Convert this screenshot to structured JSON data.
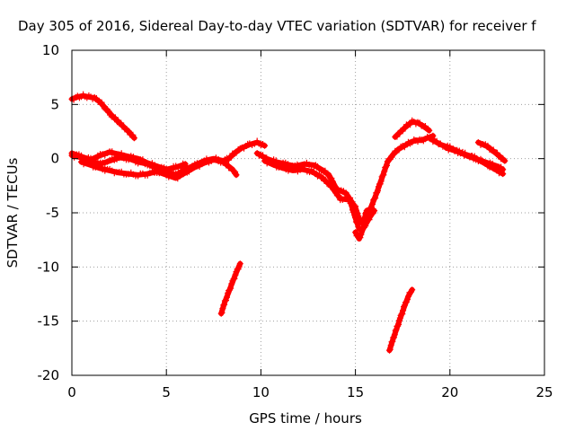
{
  "chart_data": {
    "type": "scatter",
    "title": "Day 305 of 2016, Sidereal Day-to-day VTEC variation (SDTVAR) for receiver f",
    "xlabel": "GPS time / hours",
    "ylabel": "SDTVAR / TECUs",
    "xlim": [
      0,
      25
    ],
    "ylim": [
      -20,
      10
    ],
    "xticks": [
      0,
      5,
      10,
      15,
      20,
      25
    ],
    "yticks": [
      -20,
      -15,
      -10,
      -5,
      0,
      5,
      10
    ],
    "grid": true,
    "marker": "plus",
    "series_color": "#ff0000",
    "series": [
      {
        "x": [
          0.0,
          0.3,
          0.6,
          0.9,
          1.2,
          1.5,
          1.8,
          2.1,
          2.4,
          2.7,
          3.0,
          3.3
        ],
        "y": [
          5.5,
          5.7,
          5.8,
          5.7,
          5.6,
          5.2,
          4.6,
          4.0,
          3.5,
          3.0,
          2.5,
          1.9
        ]
      },
      {
        "x": [
          0.0,
          0.5,
          1.0,
          1.5,
          2.0,
          2.5,
          3.0,
          3.5,
          4.0,
          4.5,
          5.0,
          5.5,
          6.0,
          6.5,
          7.0,
          7.5,
          8.0,
          8.3,
          8.6,
          9.0,
          9.4,
          9.8,
          10.2
        ],
        "y": [
          0.3,
          0.1,
          -0.2,
          -0.5,
          -0.2,
          0.1,
          0.0,
          -0.3,
          -0.5,
          -0.9,
          -1.2,
          -1.5,
          -1.0,
          -0.6,
          -0.2,
          0.0,
          -0.2,
          0.0,
          0.5,
          1.0,
          1.3,
          1.5,
          1.2
        ]
      },
      {
        "x": [
          0.0,
          0.5,
          1.0,
          1.5,
          2.0,
          2.5,
          3.0,
          3.5,
          4.0,
          4.5,
          5.0,
          5.5,
          6.0
        ],
        "y": [
          0.5,
          0.2,
          -0.1,
          0.3,
          0.6,
          0.4,
          0.2,
          0.0,
          -0.4,
          -0.7,
          -1.0,
          -0.8,
          -0.5
        ]
      },
      {
        "x": [
          0.5,
          1.0,
          1.5,
          2.0,
          2.5,
          3.0,
          3.5,
          4.0,
          4.5,
          5.0,
          5.5,
          6.0,
          6.5,
          7.0,
          7.5,
          8.0,
          8.5,
          8.7
        ],
        "y": [
          -0.3,
          -0.6,
          -0.9,
          -1.1,
          -1.3,
          -1.4,
          -1.5,
          -1.4,
          -1.2,
          -1.5,
          -1.8,
          -1.3,
          -0.8,
          -0.4,
          -0.1,
          -0.3,
          -1.0,
          -1.5
        ]
      },
      {
        "x": [
          7.9,
          8.1,
          8.3,
          8.5,
          8.7,
          8.9
        ],
        "y": [
          -14.3,
          -13.2,
          -12.3,
          -11.4,
          -10.5,
          -9.7
        ]
      },
      {
        "x": [
          9.8,
          10.3,
          10.8,
          11.3,
          11.8,
          12.3,
          12.8,
          13.2,
          13.6,
          14.0,
          14.5,
          15.0,
          15.2,
          15.4,
          15.6
        ],
        "y": [
          0.5,
          0.0,
          -0.3,
          -0.5,
          -0.7,
          -0.5,
          -0.6,
          -1.0,
          -1.5,
          -2.8,
          -3.2,
          -4.5,
          -5.6,
          -6.0,
          -4.8
        ]
      },
      {
        "x": [
          10.2,
          10.7,
          11.2,
          11.7,
          12.2,
          12.7,
          13.2,
          13.7,
          14.2,
          14.7,
          15.0,
          15.2
        ],
        "y": [
          -0.2,
          -0.6,
          -0.9,
          -1.1,
          -1.0,
          -1.2,
          -1.7,
          -2.5,
          -3.7,
          -3.8,
          -5.5,
          -6.5
        ]
      },
      {
        "x": [
          15.0,
          15.2,
          15.4,
          15.6,
          15.8,
          16.0
        ],
        "y": [
          -6.8,
          -7.4,
          -6.5,
          -5.9,
          -5.3,
          -4.8
        ]
      },
      {
        "x": [
          15.5,
          15.8,
          16.1,
          16.4,
          16.7,
          17.0,
          17.3,
          17.6,
          17.9,
          18.2,
          18.5,
          18.8,
          19.1
        ],
        "y": [
          -5.8,
          -4.6,
          -3.3,
          -1.8,
          -0.3,
          0.4,
          0.9,
          1.2,
          1.5,
          1.7,
          1.7,
          1.9,
          2.1
        ]
      },
      {
        "x": [
          16.8,
          17.0,
          17.2,
          17.4,
          17.6,
          17.8,
          18.0
        ],
        "y": [
          -17.7,
          -16.6,
          -15.6,
          -14.6,
          -13.6,
          -12.7,
          -12.1
        ]
      },
      {
        "x": [
          17.1,
          17.4,
          17.7,
          18.0,
          18.3,
          18.6,
          18.9
        ],
        "y": [
          2.0,
          2.5,
          3.0,
          3.4,
          3.3,
          3.0,
          2.6
        ]
      },
      {
        "x": [
          19.0,
          19.5,
          20.0,
          20.5,
          21.0,
          21.5,
          22.0,
          22.5,
          22.8
        ],
        "y": [
          1.8,
          1.3,
          1.0,
          0.6,
          0.2,
          -0.1,
          -0.4,
          -0.7,
          -1.0
        ]
      },
      {
        "x": [
          19.8,
          20.3,
          20.8,
          21.3,
          21.8,
          22.3,
          22.8
        ],
        "y": [
          1.0,
          0.7,
          0.4,
          0.1,
          -0.4,
          -0.9,
          -1.4
        ]
      },
      {
        "x": [
          21.5,
          22.0,
          22.5,
          22.9
        ],
        "y": [
          1.5,
          1.1,
          0.4,
          -0.2
        ]
      }
    ]
  }
}
